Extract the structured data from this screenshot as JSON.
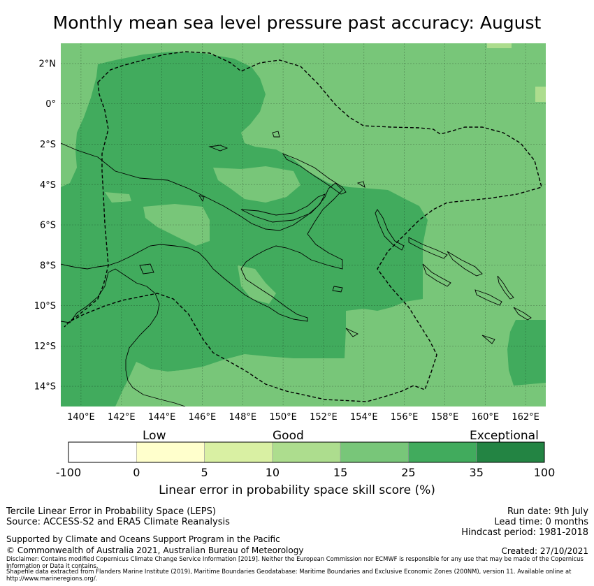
{
  "title": "Monthly mean sea level pressure past accuracy: August",
  "map": {
    "lat_labels": [
      "2°N",
      "0°",
      "2°S",
      "4°S",
      "6°S",
      "8°S",
      "10°S",
      "12°S",
      "14°S"
    ],
    "lon_labels": [
      "140°E",
      "142°E",
      "144°E",
      "146°E",
      "148°E",
      "150°E",
      "152°E",
      "154°E",
      "156°E",
      "158°E",
      "160°E",
      "162°E"
    ],
    "lat_range": [
      -15,
      3
    ],
    "lon_range": [
      139,
      163
    ],
    "grid": true,
    "colors": {
      "skill_15_25": "#78c679",
      "skill_25_35": "#41ab5d",
      "skill_5_10": "#d9f0a3",
      "coastline": "#000000",
      "eez_boundary": "#000000"
    }
  },
  "colorbar": {
    "categories": [
      "Low",
      "Good",
      "Exceptional"
    ],
    "ticks": [
      "-100",
      "0",
      "5",
      "10",
      "15",
      "25",
      "35",
      "100"
    ],
    "colors": [
      "#ffffff",
      "#ffffcc",
      "#d9f0a3",
      "#addd8e",
      "#78c679",
      "#41ab5d",
      "#238443"
    ],
    "label": "Linear error in probability space skill score (%)"
  },
  "footer": {
    "left_line1": "Tercile Linear Error in Probability Space (LEPS)",
    "left_line2": "Source: ACCESS-S2 and ERA5 Climate Reanalysis",
    "support": "Supported by Climate and Oceans Support Program in the Pacific",
    "copyright": "© Commonwealth of Australia 2021, Australian Bureau of Meteorology",
    "run_date": "Run date: 9th July",
    "lead_time": "Lead time: 0 months",
    "hindcast": "Hindcast period: 1981-2018",
    "created": "Created: 27/10/2021",
    "disclaimer": "Disclaimer: Contains modified Copernicus Climate Change Service Information [2019]. Neither the European Commission nor ECMWF is responsible for any use that may be made of the Copernicus Information or Data it contains.",
    "shapefile": "Shapefile data extracted from Flanders Marine Institute (2019), Maritime Boundaries Geodatabase: Maritime Boundaries and Exclusive Economic Zones (200NM), version 11. Available online at http://www.marineregions.org/."
  }
}
